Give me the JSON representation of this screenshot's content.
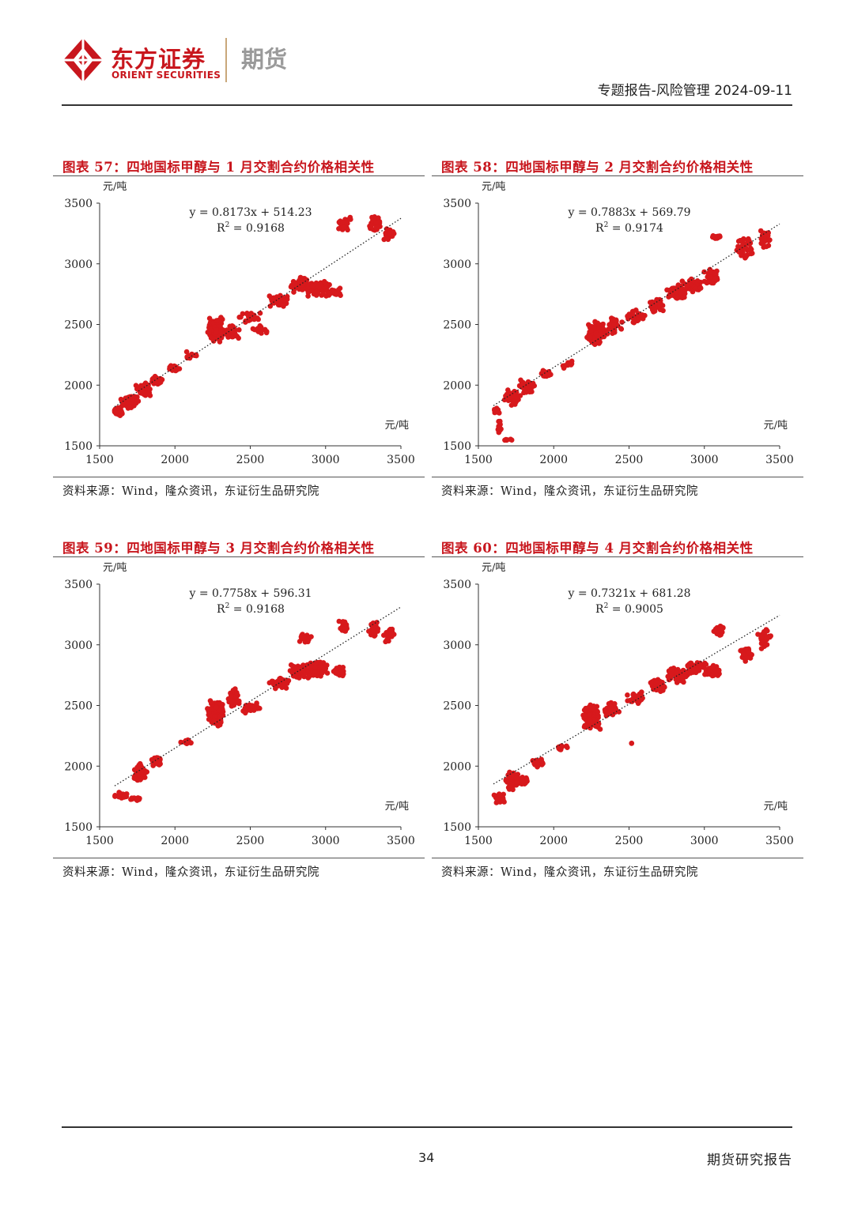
{
  "header": {
    "brand_cn": "东方证券",
    "brand_en": "ORIENT SECURITIES",
    "brand_sub": "期货",
    "report_meta": "专题报告-风险管理 2024-09-11",
    "accent": "#c8161d"
  },
  "footer": {
    "page_number": "34",
    "right_text": "期货研究报告"
  },
  "panels": [
    {
      "title": "图表 57：四地国标甲醇与 1 月交割合约价格相关性",
      "source": "资料来源：Wind，隆众资讯，东证衍生品研究院"
    },
    {
      "title": "图表 58：四地国标甲醇与 2 月交割合约价格相关性",
      "source": "资料来源：Wind，隆众资讯，东证衍生品研究院"
    },
    {
      "title": "图表 59：四地国标甲醇与 3 月交割合约价格相关性",
      "source": "资料来源：Wind，隆众资讯，东证衍生品研究院"
    },
    {
      "title": "图表 60：四地国标甲醇与 4 月交割合约价格相关性",
      "source": "资料来源：Wind，隆众资讯，东证衍生品研究院"
    }
  ],
  "chart_data": [
    {
      "type": "scatter",
      "xlabel": "元/吨",
      "ylabel": "元/吨",
      "xlim": [
        1500,
        3500
      ],
      "ylim": [
        1500,
        3500
      ],
      "xticks": [
        1500,
        2000,
        2500,
        3000,
        3500
      ],
      "yticks": [
        1500,
        2000,
        2500,
        3000,
        3500
      ],
      "trendline": {
        "slope": 0.8173,
        "intercept": 514.23,
        "style": "dotted"
      },
      "equation": "y = 0.8173x + 514.23",
      "r2_prefix": "R",
      "r2_value": " = 0.9168",
      "color": "#d7191c",
      "clusters": [
        [
          1630,
          1780,
          45,
          35,
          25
        ],
        [
          1700,
          1860,
          60,
          60,
          55
        ],
        [
          1790,
          1960,
          60,
          60,
          55
        ],
        [
          1880,
          2040,
          40,
          40,
          30
        ],
        [
          2000,
          2140,
          50,
          30,
          12
        ],
        [
          2110,
          2240,
          50,
          40,
          12
        ],
        [
          2270,
          2460,
          55,
          110,
          150
        ],
        [
          2380,
          2430,
          55,
          70,
          40
        ],
        [
          2500,
          2550,
          80,
          70,
          25
        ],
        [
          2560,
          2460,
          60,
          40,
          20
        ],
        [
          2690,
          2690,
          70,
          55,
          50
        ],
        [
          2840,
          2830,
          90,
          70,
          80
        ],
        [
          2950,
          2800,
          80,
          80,
          55
        ],
        [
          3060,
          2760,
          60,
          50,
          25
        ],
        [
          3120,
          3330,
          50,
          60,
          35
        ],
        [
          3330,
          3330,
          40,
          70,
          35
        ],
        [
          3420,
          3240,
          40,
          60,
          25
        ]
      ]
    },
    {
      "type": "scatter",
      "xlabel": "元/吨",
      "ylabel": "元/吨",
      "xlim": [
        1500,
        3500
      ],
      "ylim": [
        1500,
        3500
      ],
      "xticks": [
        1500,
        2000,
        2500,
        3000,
        3500
      ],
      "yticks": [
        1500,
        2000,
        2500,
        3000,
        3500
      ],
      "trendline": {
        "slope": 0.7883,
        "intercept": 569.79,
        "style": "dotted"
      },
      "equation": "y = 0.7883x + 569.79",
      "r2_prefix": "R",
      "r2_value": " = 0.9174",
      "color": "#d7191c",
      "clusters": [
        [
          1620,
          1790,
          30,
          25,
          12
        ],
        [
          1640,
          1650,
          12,
          90,
          14
        ],
        [
          1700,
          1550,
          40,
          6,
          8
        ],
        [
          1730,
          1900,
          60,
          70,
          55
        ],
        [
          1830,
          1990,
          60,
          60,
          50
        ],
        [
          1950,
          2090,
          40,
          40,
          20
        ],
        [
          2100,
          2170,
          50,
          40,
          12
        ],
        [
          2280,
          2430,
          60,
          110,
          140
        ],
        [
          2400,
          2500,
          60,
          80,
          40
        ],
        [
          2550,
          2560,
          70,
          70,
          25
        ],
        [
          2690,
          2660,
          60,
          60,
          45
        ],
        [
          2820,
          2770,
          80,
          70,
          80
        ],
        [
          2930,
          2820,
          80,
          60,
          45
        ],
        [
          3050,
          2890,
          60,
          70,
          30
        ],
        [
          3080,
          3220,
          30,
          20,
          15
        ],
        [
          3270,
          3130,
          60,
          90,
          40
        ],
        [
          3400,
          3200,
          40,
          90,
          25
        ]
      ]
    },
    {
      "type": "scatter",
      "xlabel": "元/吨",
      "ylabel": "元/吨",
      "xlim": [
        1500,
        3500
      ],
      "ylim": [
        1500,
        3500
      ],
      "xticks": [
        1500,
        2000,
        2500,
        3000,
        3500
      ],
      "yticks": [
        1500,
        2000,
        2500,
        3000,
        3500
      ],
      "trendline": {
        "slope": 0.7758,
        "intercept": 596.31,
        "style": "dotted"
      },
      "equation": "y = 0.7758x + 596.31",
      "r2_prefix": "R",
      "r2_value": " = 0.9168",
      "color": "#d7191c",
      "clusters": [
        [
          1640,
          1760,
          45,
          25,
          30
        ],
        [
          1740,
          1730,
          40,
          20,
          15
        ],
        [
          1770,
          1950,
          50,
          80,
          55
        ],
        [
          1880,
          2040,
          40,
          40,
          30
        ],
        [
          2080,
          2200,
          50,
          30,
          12
        ],
        [
          2270,
          2440,
          60,
          110,
          140
        ],
        [
          2390,
          2560,
          50,
          90,
          40
        ],
        [
          2510,
          2480,
          70,
          50,
          25
        ],
        [
          2690,
          2690,
          70,
          55,
          50
        ],
        [
          2830,
          2780,
          80,
          60,
          80
        ],
        [
          2860,
          3060,
          50,
          50,
          20
        ],
        [
          2950,
          2800,
          70,
          70,
          55
        ],
        [
          3080,
          2780,
          50,
          50,
          25
        ],
        [
          3120,
          3150,
          40,
          60,
          25
        ],
        [
          3320,
          3120,
          40,
          70,
          35
        ],
        [
          3420,
          3080,
          40,
          80,
          25
        ]
      ]
    },
    {
      "type": "scatter",
      "xlabel": "元/吨",
      "ylabel": "元/吨",
      "xlim": [
        1500,
        3500
      ],
      "ylim": [
        1500,
        3500
      ],
      "xticks": [
        1500,
        2000,
        2500,
        3000,
        3500
      ],
      "yticks": [
        1500,
        2000,
        2500,
        3000,
        3500
      ],
      "trendline": {
        "slope": 0.7321,
        "intercept": 681.28,
        "style": "dotted"
      },
      "equation": "y = 0.7321x + 681.28",
      "r2_prefix": "R",
      "r2_value": " = 0.9005",
      "color": "#d7191c",
      "clusters": [
        [
          1640,
          1740,
          40,
          50,
          35
        ],
        [
          1730,
          1880,
          55,
          80,
          55
        ],
        [
          1790,
          1880,
          50,
          40,
          40
        ],
        [
          1900,
          2030,
          40,
          40,
          25
        ],
        [
          2050,
          2150,
          50,
          30,
          12
        ],
        [
          2250,
          2400,
          60,
          110,
          140
        ],
        [
          2380,
          2470,
          60,
          70,
          40
        ],
        [
          2540,
          2560,
          60,
          60,
          25
        ],
        [
          2520,
          2190,
          10,
          10,
          2
        ],
        [
          2690,
          2670,
          60,
          60,
          50
        ],
        [
          2820,
          2750,
          80,
          70,
          80
        ],
        [
          2950,
          2810,
          70,
          60,
          55
        ],
        [
          3050,
          2790,
          60,
          50,
          30
        ],
        [
          3100,
          3120,
          40,
          50,
          25
        ],
        [
          3280,
          2930,
          50,
          80,
          35
        ],
        [
          3400,
          3050,
          50,
          100,
          30
        ]
      ]
    }
  ]
}
